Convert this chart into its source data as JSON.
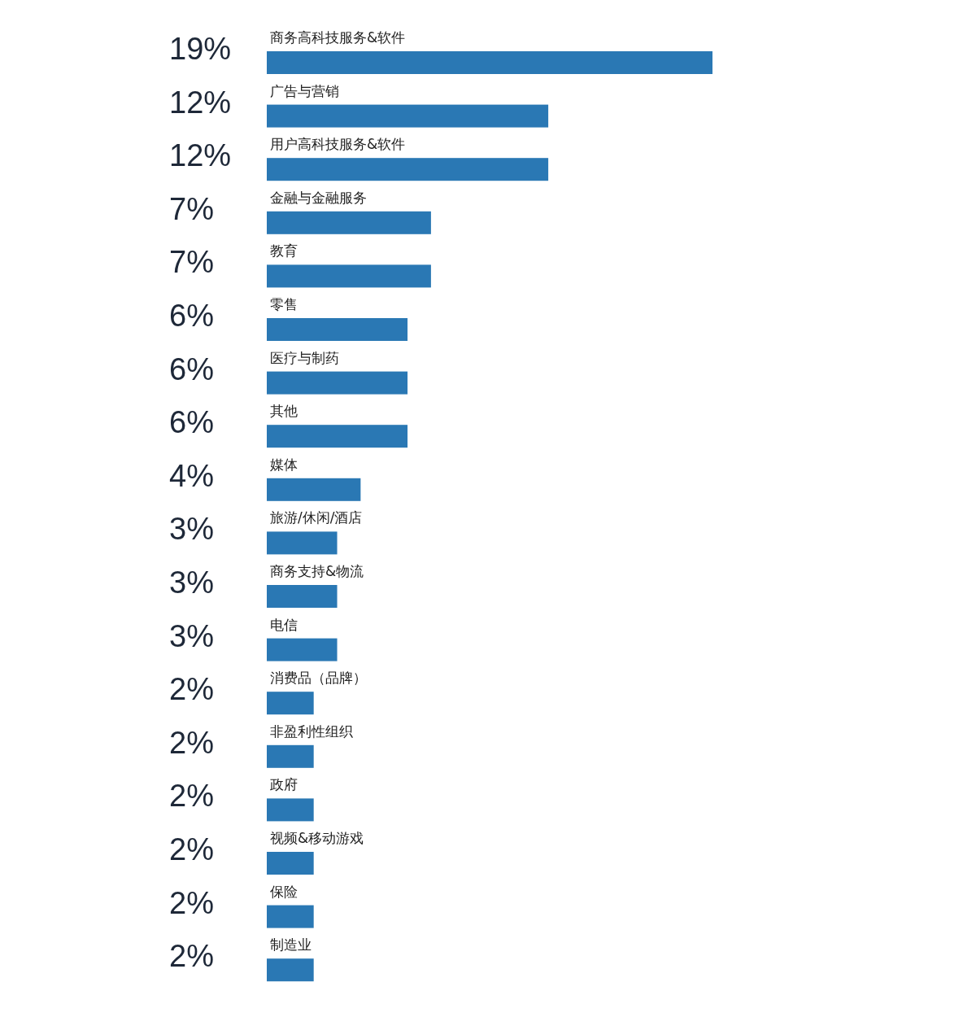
{
  "chart_data": {
    "type": "bar",
    "orientation": "horizontal",
    "categories": [
      "商务高科技服务&软件",
      "广告与营销",
      "用户高科技服务&软件",
      "金融与金融服务",
      "教育",
      "零售",
      "医疗与制药",
      "其他",
      "媒体",
      "旅游/休闲/酒店",
      "商务支持&物流",
      "电信",
      "消费品（品牌）",
      "非盈利性组织",
      "政府",
      "视频&移动游戏",
      "保险",
      "制造业"
    ],
    "values": [
      19,
      12,
      12,
      7,
      7,
      6,
      6,
      6,
      4,
      3,
      3,
      3,
      2,
      2,
      2,
      2,
      2,
      2
    ],
    "value_labels": [
      "19%",
      "12%",
      "12%",
      "7%",
      "7%",
      "6%",
      "6%",
      "6%",
      "4%",
      "3%",
      "3%",
      "3%",
      "2%",
      "2%",
      "2%",
      "2%",
      "2%",
      "2%"
    ],
    "color": "#2a78b4"
  }
}
